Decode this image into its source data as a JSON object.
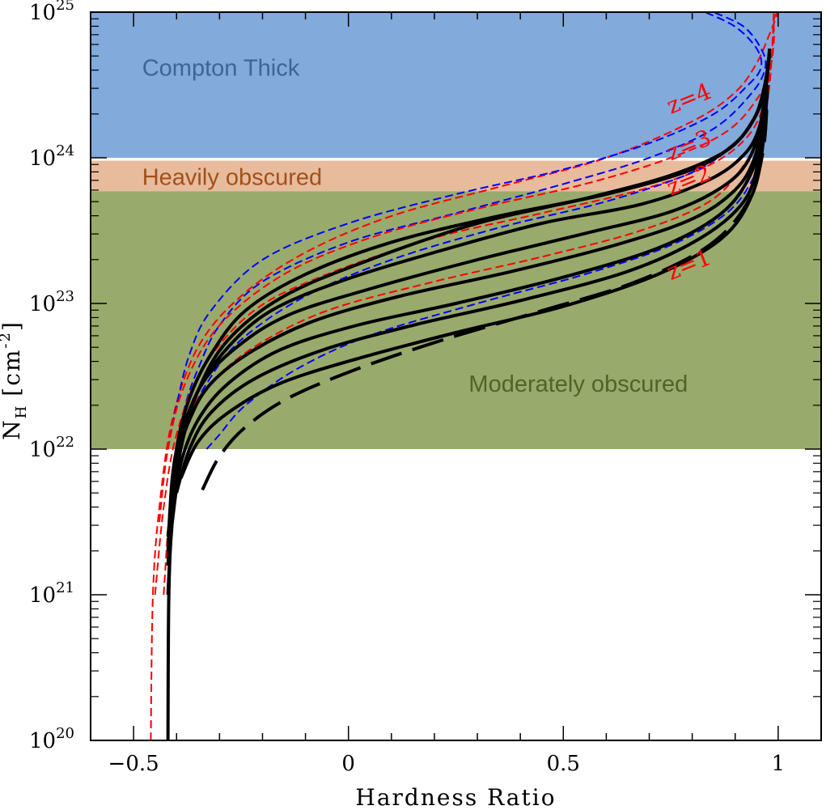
{
  "chart_data": {
    "type": "line",
    "xlabel": "Hardness Ratio",
    "ylabel_main": "N",
    "ylabel_sub": "H",
    "ylabel_unit": "[cm",
    "ylabel_exp": "-2",
    "ylabel_close": "]",
    "xlim": [
      -0.6,
      1.1
    ],
    "ylim_log10": [
      20,
      25
    ],
    "y_scale": "log",
    "x_ticks": [
      {
        "value": -0.5,
        "label": "−0.5"
      },
      {
        "value": 0,
        "label": "0"
      },
      {
        "value": 0.5,
        "label": "0.5"
      },
      {
        "value": 1,
        "label": "1"
      }
    ],
    "y_ticks": [
      {
        "value": 20,
        "base": "10",
        "exp": "20"
      },
      {
        "value": 21,
        "base": "10",
        "exp": "21"
      },
      {
        "value": 22,
        "base": "10",
        "exp": "22"
      },
      {
        "value": 23,
        "base": "10",
        "exp": "23"
      },
      {
        "value": 24,
        "base": "10",
        "exp": "24"
      },
      {
        "value": 25,
        "base": "10",
        "exp": "25"
      }
    ],
    "regions": [
      {
        "label": "Compton Thick",
        "ymin_log10": 24.0,
        "ymax_log10": 25.0,
        "color": "#82aadb",
        "text_color": "#3a6796",
        "label_x": -0.48,
        "label_y": 24.62
      },
      {
        "label": "Heavily obscured",
        "ymin_log10": 23.77,
        "ymax_log10": 23.98,
        "color": "#e8bb9d",
        "text_color": "#a0511a",
        "label_x": -0.48,
        "label_y": 23.87
      },
      {
        "label": "Moderately obscured",
        "ymin_log10": 22.0,
        "ymax_log10": 23.77,
        "color": "#99aa6d",
        "text_color": "#4e6428",
        "label_x": 0.28,
        "label_y": 22.45
      }
    ],
    "z_labels": [
      {
        "label": "z=4",
        "x": 0.75,
        "y": 24.3
      },
      {
        "label": "z=3",
        "x": 0.75,
        "y": 23.98
      },
      {
        "label": "z=2",
        "x": 0.75,
        "y": 23.74
      },
      {
        "label": "z=1",
        "x": 0.75,
        "y": 23.16
      }
    ],
    "series": [
      {
        "style": "red-dashed",
        "color": "#ff0000",
        "x": [
          -0.46,
          -0.455,
          -0.44,
          -0.41,
          -0.35,
          -0.25,
          -0.1,
          0.1,
          0.35,
          0.6,
          0.8,
          0.9,
          0.95,
          0.98,
          1.0
        ],
        "y": [
          20.0,
          21.0,
          21.6,
          22.2,
          22.7,
          23.05,
          23.35,
          23.6,
          23.8,
          24.0,
          24.25,
          24.45,
          24.65,
          24.85,
          25.0
        ]
      },
      {
        "style": "blue-dashed",
        "color": "#0000ff",
        "x": [
          -0.42,
          -0.4,
          -0.37,
          -0.32,
          -0.2,
          0.0,
          0.25,
          0.5,
          0.7,
          0.85,
          0.93,
          0.96,
          0.95,
          0.9,
          0.83
        ],
        "y": [
          22.0,
          22.3,
          22.65,
          22.95,
          23.3,
          23.55,
          23.75,
          23.92,
          24.1,
          24.3,
          24.5,
          24.62,
          24.75,
          24.9,
          25.0
        ]
      },
      {
        "style": "blue-dashed",
        "color": "#0000ff",
        "x": [
          -0.4,
          -0.38,
          -0.35,
          -0.3,
          -0.2,
          0.0,
          0.25,
          0.5,
          0.7,
          0.85,
          0.94,
          0.97,
          0.96,
          0.92,
          0.85
        ],
        "y": [
          22.0,
          22.3,
          22.55,
          22.85,
          23.15,
          23.42,
          23.62,
          23.82,
          24.0,
          24.2,
          24.45,
          24.62,
          24.75,
          24.9,
          25.0
        ]
      },
      {
        "style": "red-dashed",
        "color": "#ff0000",
        "x": [
          -0.44,
          -0.42,
          -0.38,
          -0.3,
          -0.15,
          0.05,
          0.3,
          0.55,
          0.75,
          0.88,
          0.95,
          0.98,
          0.99,
          0.99,
          1.0
        ],
        "y": [
          21.5,
          22.0,
          22.45,
          22.85,
          23.2,
          23.45,
          23.65,
          23.82,
          24.0,
          24.18,
          24.4,
          24.6,
          24.8,
          24.95,
          25.0
        ]
      },
      {
        "style": "red-dashed",
        "color": "#ff0000",
        "x": [
          -0.45,
          -0.43,
          -0.4,
          -0.34,
          -0.22,
          -0.05,
          0.2,
          0.45,
          0.68,
          0.84,
          0.93,
          0.97,
          0.985,
          0.99
        ],
        "y": [
          21.0,
          21.6,
          22.1,
          22.55,
          22.95,
          23.2,
          23.45,
          23.62,
          23.78,
          23.95,
          24.15,
          24.4,
          24.7,
          25.0
        ]
      },
      {
        "style": "blue-dashed",
        "color": "#0000ff",
        "x": [
          -0.39,
          -0.37,
          -0.33,
          -0.25,
          -0.1,
          0.1,
          0.35,
          0.6,
          0.8,
          0.9,
          0.95,
          0.97
        ],
        "y": [
          22.0,
          22.2,
          22.45,
          22.75,
          23.05,
          23.3,
          23.52,
          23.7,
          23.9,
          24.1,
          24.3,
          24.5
        ]
      },
      {
        "style": "red-dashed",
        "color": "#ff0000",
        "x": [
          -0.43,
          -0.41,
          -0.38,
          -0.32,
          -0.22,
          -0.05,
          0.2,
          0.45,
          0.68,
          0.84,
          0.92,
          0.96,
          0.98,
          0.99
        ],
        "y": [
          21.0,
          21.8,
          22.2,
          22.45,
          22.7,
          22.95,
          23.15,
          23.32,
          23.5,
          23.7,
          23.95,
          24.2,
          24.5,
          25.0
        ]
      },
      {
        "style": "blue-dashed",
        "color": "#0000ff",
        "x": [
          -0.33,
          -0.3,
          -0.24,
          -0.12,
          0.05,
          0.3,
          0.55,
          0.75,
          0.88,
          0.94,
          0.96,
          0.97
        ],
        "y": [
          22.0,
          22.1,
          22.3,
          22.55,
          22.78,
          23.0,
          23.2,
          23.4,
          23.62,
          23.85,
          24.05,
          24.3
        ]
      },
      {
        "style": "black-solid",
        "color": "#000000",
        "x": [
          -0.42,
          -0.418,
          -0.41,
          -0.39,
          -0.35,
          -0.28,
          -0.15,
          0.05,
          0.3,
          0.55,
          0.75,
          0.88,
          0.94,
          0.965,
          0.98
        ],
        "y": [
          20.0,
          21.0,
          21.5,
          22.0,
          22.4,
          22.75,
          23.05,
          23.3,
          23.55,
          23.72,
          23.88,
          24.05,
          24.25,
          24.45,
          24.7
        ]
      },
      {
        "style": "black-solid",
        "color": "#000000",
        "x": [
          -0.42,
          -0.41,
          -0.4,
          -0.37,
          -0.32,
          -0.24,
          -0.1,
          0.1,
          0.35,
          0.6,
          0.8,
          0.9,
          0.95,
          0.97,
          0.98
        ],
        "y": [
          21.0,
          21.6,
          22.0,
          22.35,
          22.65,
          22.95,
          23.2,
          23.42,
          23.6,
          23.75,
          23.92,
          24.1,
          24.3,
          24.5,
          24.75
        ]
      },
      {
        "style": "black-solid",
        "color": "#000000",
        "x": [
          -0.42,
          -0.41,
          -0.39,
          -0.35,
          -0.28,
          -0.18,
          -0.02,
          0.2,
          0.45,
          0.68,
          0.84,
          0.92,
          0.955,
          0.97,
          0.98
        ],
        "y": [
          21.2,
          21.7,
          22.05,
          22.4,
          22.7,
          22.95,
          23.15,
          23.35,
          23.55,
          23.68,
          23.85,
          24.02,
          24.2,
          24.45,
          24.72
        ]
      },
      {
        "style": "black-solid",
        "color": "#000000",
        "x": [
          -0.42,
          -0.41,
          -0.39,
          -0.34,
          -0.26,
          -0.14,
          0.05,
          0.3,
          0.55,
          0.75,
          0.87,
          0.93,
          0.96,
          0.975
        ],
        "y": [
          21.3,
          21.8,
          22.1,
          22.45,
          22.7,
          22.92,
          23.1,
          23.3,
          23.48,
          23.63,
          23.8,
          23.98,
          24.25,
          24.6
        ]
      },
      {
        "style": "black-solid",
        "color": "#000000",
        "x": [
          -0.42,
          -0.4,
          -0.37,
          -0.32,
          -0.22,
          -0.08,
          0.12,
          0.38,
          0.62,
          0.8,
          0.9,
          0.945,
          0.965,
          0.975
        ],
        "y": [
          21.4,
          21.9,
          22.2,
          22.45,
          22.68,
          22.88,
          23.05,
          23.22,
          23.4,
          23.58,
          23.78,
          24.0,
          24.3,
          24.6
        ]
      },
      {
        "style": "black-solid",
        "color": "#000000",
        "x": [
          -0.41,
          -0.39,
          -0.35,
          -0.28,
          -0.16,
          0.02,
          0.25,
          0.5,
          0.72,
          0.86,
          0.93,
          0.96,
          0.97
        ],
        "y": [
          21.5,
          21.9,
          22.2,
          22.45,
          22.68,
          22.85,
          23.0,
          23.18,
          23.38,
          23.6,
          23.85,
          24.15,
          24.5
        ]
      },
      {
        "style": "black-solid",
        "color": "#000000",
        "x": [
          -0.4,
          -0.37,
          -0.32,
          -0.22,
          -0.06,
          0.15,
          0.4,
          0.65,
          0.82,
          0.92,
          0.955,
          0.97
        ],
        "y": [
          21.7,
          22.0,
          22.25,
          22.48,
          22.68,
          22.85,
          23.02,
          23.22,
          23.45,
          23.7,
          24.0,
          24.4
        ]
      },
      {
        "style": "black-solid",
        "color": "#000000",
        "x": [
          -0.39,
          -0.35,
          -0.28,
          -0.16,
          0.02,
          0.25,
          0.5,
          0.72,
          0.87,
          0.94,
          0.965,
          0.975
        ],
        "y": [
          21.8,
          22.05,
          22.25,
          22.45,
          22.62,
          22.8,
          22.98,
          23.2,
          23.45,
          23.75,
          24.1,
          24.5
        ]
      },
      {
        "style": "black-dash-long",
        "color": "#000000",
        "x": [
          -0.34,
          -0.3,
          -0.24,
          -0.14,
          0.02,
          0.22,
          0.45,
          0.67,
          0.84,
          0.93,
          0.965,
          0.975
        ],
        "y": [
          21.72,
          21.95,
          22.15,
          22.35,
          22.55,
          22.75,
          22.95,
          23.15,
          23.4,
          23.7,
          24.05,
          24.45
        ]
      }
    ]
  }
}
